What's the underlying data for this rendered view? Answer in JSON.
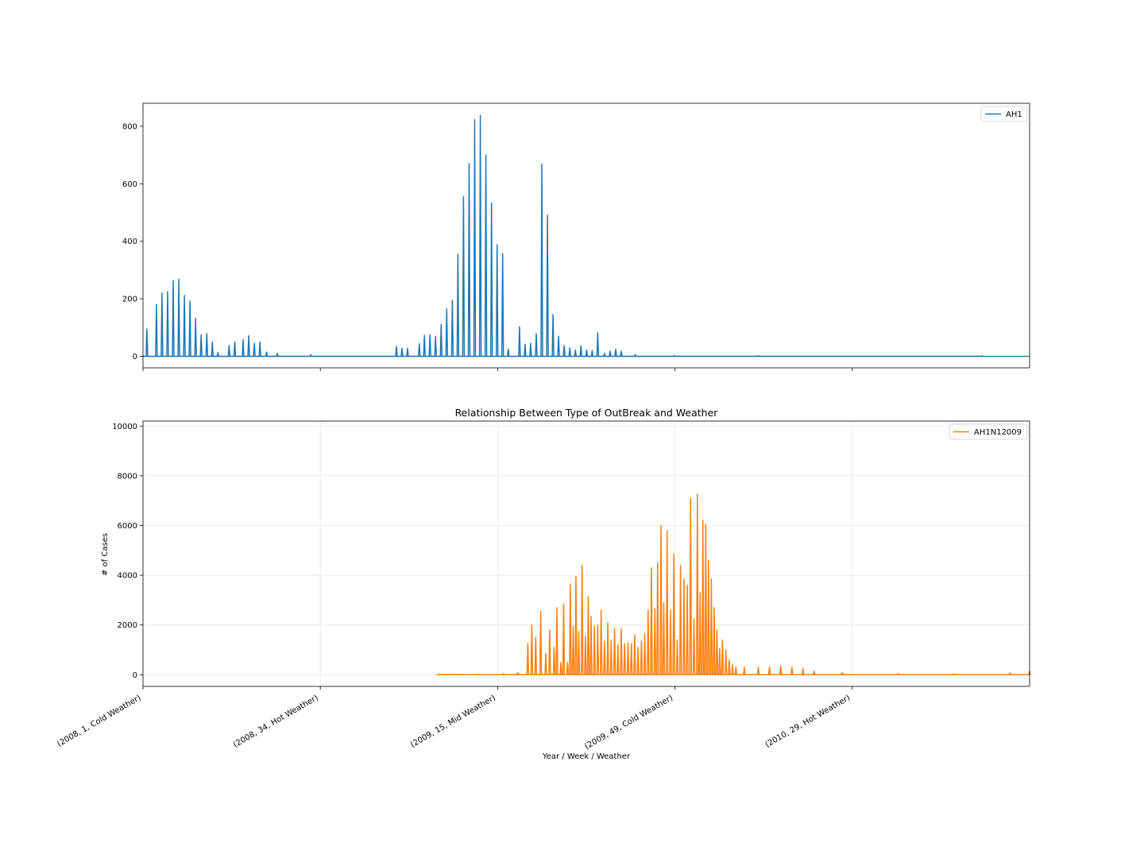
{
  "chart_data": [
    {
      "type": "line",
      "title": "",
      "xlabel": "",
      "ylabel": "",
      "ylim": [
        -40,
        880
      ],
      "yticks": [
        0,
        200,
        400,
        600,
        800
      ],
      "grid": false,
      "legend_position": "top-right",
      "series": [
        {
          "name": "AH1",
          "color": "#1f77b4",
          "points": [
            [
              0,
              0
            ],
            [
              0.7,
              95
            ],
            [
              2.4,
              180
            ],
            [
              3.4,
              220
            ],
            [
              4.4,
              225
            ],
            [
              5.4,
              263
            ],
            [
              6.4,
              268
            ],
            [
              7.4,
              212
            ],
            [
              8.4,
              192
            ],
            [
              9.4,
              132
            ],
            [
              10.4,
              75
            ],
            [
              11.4,
              79
            ],
            [
              12.4,
              50
            ],
            [
              13.4,
              14
            ],
            [
              15.4,
              38
            ],
            [
              16.4,
              50
            ],
            [
              17.9,
              58
            ],
            [
              18.9,
              72
            ],
            [
              19.9,
              45
            ],
            [
              20.9,
              50
            ],
            [
              22.1,
              15
            ],
            [
              24.0,
              10
            ],
            [
              30.0,
              5
            ],
            [
              45.3,
              34
            ],
            [
              46.3,
              28
            ],
            [
              47.3,
              28
            ],
            [
              49.4,
              44
            ],
            [
              50.3,
              73
            ],
            [
              51.3,
              75
            ],
            [
              52.3,
              70
            ],
            [
              53.3,
              112
            ],
            [
              54.3,
              165
            ],
            [
              55.3,
              195
            ],
            [
              56.3,
              355
            ],
            [
              57.3,
              555
            ],
            [
              58.3,
              670
            ],
            [
              59.3,
              823
            ],
            [
              60.3,
              838
            ],
            [
              61.3,
              700
            ],
            [
              62.3,
              533
            ],
            [
              63.3,
              388
            ],
            [
              64.3,
              357
            ],
            [
              65.3,
              25
            ],
            [
              67.3,
              103
            ],
            [
              68.3,
              42
            ],
            [
              69.3,
              45
            ],
            [
              70.3,
              78
            ],
            [
              71.3,
              668
            ],
            [
              72.3,
              491
            ],
            [
              73.3,
              145
            ],
            [
              74.3,
              70
            ],
            [
              75.3,
              37
            ],
            [
              76.3,
              30
            ],
            [
              77.3,
              22
            ],
            [
              78.3,
              37
            ],
            [
              79.3,
              22
            ],
            [
              80.3,
              20
            ],
            [
              81.3,
              82
            ],
            [
              82.5,
              10
            ],
            [
              83.5,
              18
            ],
            [
              84.5,
              25
            ],
            [
              85.5,
              18
            ],
            [
              88.0,
              6
            ],
            [
              95.0,
              3
            ],
            [
              110.0,
              2
            ],
            [
              150.0,
              2
            ]
          ]
        }
      ]
    },
    {
      "type": "line",
      "title": "Relationship Between Type of OutBreak and Weather",
      "xlabel": "Year / Week / Weather",
      "ylabel": "# of Cases",
      "ylim": [
        -470,
        10200
      ],
      "yticks": [
        0,
        2000,
        4000,
        6000,
        8000,
        10000
      ],
      "x_tick_labels": [
        "(2008, 1, Cold Weather)",
        "(2008, 34, Hot Weather)",
        "(2009, 15, Mid Weather)",
        "(2009, 49, Cold Weather)",
        "(2010, 29, Hot Weather)"
      ],
      "grid": true,
      "legend_position": "top-right",
      "series": [
        {
          "name": "AH1N12009",
          "color": "#ff7f0e",
          "points": [
            [
              52.5,
              10
            ],
            [
              60.0,
              20
            ],
            [
              64.5,
              40
            ],
            [
              67.0,
              80
            ],
            [
              68.8,
              1250
            ],
            [
              69.5,
              2000
            ],
            [
              70.2,
              1500
            ],
            [
              71.1,
              2550
            ],
            [
              72.0,
              850
            ],
            [
              72.7,
              1800
            ],
            [
              73.5,
              1100
            ],
            [
              74.0,
              2700
            ],
            [
              74.7,
              500
            ],
            [
              75.2,
              2850
            ],
            [
              75.9,
              500
            ],
            [
              76.4,
              3650
            ],
            [
              76.9,
              1950
            ],
            [
              77.4,
              3950
            ],
            [
              77.9,
              1750
            ],
            [
              78.5,
              4400
            ],
            [
              79.1,
              1550
            ],
            [
              79.6,
              3150
            ],
            [
              80.1,
              2350
            ],
            [
              80.7,
              1950
            ],
            [
              81.3,
              2000
            ],
            [
              81.9,
              2600
            ],
            [
              82.5,
              1350
            ],
            [
              83.1,
              2100
            ],
            [
              83.7,
              1400
            ],
            [
              84.3,
              1850
            ],
            [
              84.9,
              1200
            ],
            [
              85.5,
              1850
            ],
            [
              86.1,
              1250
            ],
            [
              86.7,
              1300
            ],
            [
              87.3,
              1250
            ],
            [
              87.9,
              1600
            ],
            [
              88.5,
              1100
            ],
            [
              89.1,
              1350
            ],
            [
              89.7,
              1650
            ],
            [
              90.3,
              2600
            ],
            [
              90.9,
              4300
            ],
            [
              91.5,
              2650
            ],
            [
              92.0,
              4500
            ],
            [
              92.6,
              6000
            ],
            [
              93.1,
              2900
            ],
            [
              93.7,
              5800
            ],
            [
              94.3,
              2600
            ],
            [
              94.9,
              4850
            ],
            [
              95.5,
              1400
            ],
            [
              96.1,
              4400
            ],
            [
              96.7,
              3850
            ],
            [
              97.3,
              3600
            ],
            [
              97.9,
              7100
            ],
            [
              98.5,
              2250
            ],
            [
              99.1,
              7250
            ],
            [
              99.6,
              3300
            ],
            [
              100.1,
              6200
            ],
            [
              100.6,
              6050
            ],
            [
              101.1,
              4600
            ],
            [
              101.6,
              3850
            ],
            [
              102.1,
              2700
            ],
            [
              102.6,
              1800
            ],
            [
              103.1,
              1050
            ],
            [
              103.6,
              1400
            ],
            [
              104.2,
              1000
            ],
            [
              104.8,
              600
            ],
            [
              105.4,
              400
            ],
            [
              106.0,
              300
            ],
            [
              107.5,
              300
            ],
            [
              110.0,
              300
            ],
            [
              112.0,
              300
            ],
            [
              114.0,
              350
            ],
            [
              116.0,
              300
            ],
            [
              118.0,
              250
            ],
            [
              120.0,
              150
            ],
            [
              125.0,
              80
            ],
            [
              135.0,
              50
            ],
            [
              145.0,
              30
            ],
            [
              155.0,
              80
            ],
            [
              158.5,
              150
            ]
          ]
        }
      ]
    }
  ]
}
